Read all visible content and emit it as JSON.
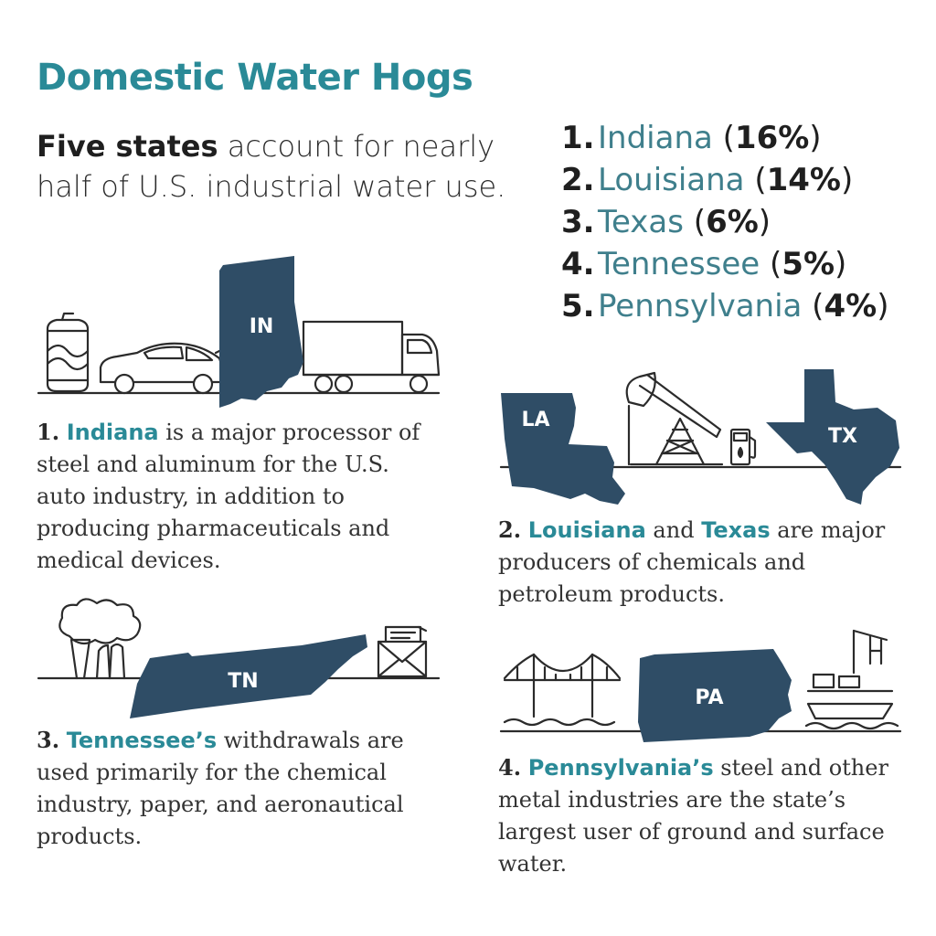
{
  "title": "Domestic Water Hogs",
  "subtitle": {
    "bold": "Five states",
    "rest": " account for nearly half of U.S. industrial water use."
  },
  "ranking": [
    {
      "num": "1.",
      "state": "Indiana",
      "open": " (",
      "pct": "16%",
      "close": ")"
    },
    {
      "num": "2.",
      "state": "Louisiana",
      "open": " (",
      "pct": "14%",
      "close": ")"
    },
    {
      "num": "3.",
      "state": "Texas",
      "open": " (",
      "pct": "6%",
      "close": ")"
    },
    {
      "num": "4.",
      "state": "Tennessee",
      "open": " (",
      "pct": "5%",
      "close": ")"
    },
    {
      "num": "5.",
      "state": "Pennsylvania",
      "open": " (",
      "pct": "4%",
      "close": ")"
    }
  ],
  "descriptions": {
    "indiana": {
      "num": "1.",
      "state": "Indiana",
      "text": " is a major processor of steel and aluminum for the U.S. auto industry, in addition to producing pharmaceuticals and medical devices."
    },
    "louisiana_texas": {
      "num": "2.",
      "state1": "Louisiana",
      "mid": " and ",
      "state2": "Texas",
      "text": " are major producers of chemicals and petroleum products."
    },
    "tennessee": {
      "num": "3.",
      "state": "Tennessee’s",
      "text": " withdrawals are used primarily for the chemical industry, paper, and aeronautical products."
    },
    "pennsylvania": {
      "num": "4.",
      "state": "Pennsylvania’s",
      "text": " steel and other metal industries are the state’s largest user of ground and surface water."
    }
  },
  "state_labels": {
    "in": "IN",
    "la": "LA",
    "tx": "TX",
    "tn": "TN",
    "pa": "PA"
  },
  "colors": {
    "title": "#2a8a97",
    "state_fill": "#2f4d66",
    "line": "#2b2b2b"
  },
  "icons": {
    "indiana_scene": [
      "soda-can-icon",
      "car-icon",
      "truck-icon"
    ],
    "louisiana_texas_scene": [
      "oil-pump-jack-icon",
      "gas-pump-icon"
    ],
    "tennessee_scene": [
      "factory-smoke-icon",
      "envelope-letter-icon"
    ],
    "pennsylvania_scene": [
      "suspension-bridge-icon",
      "cargo-ship-crane-icon"
    ]
  }
}
